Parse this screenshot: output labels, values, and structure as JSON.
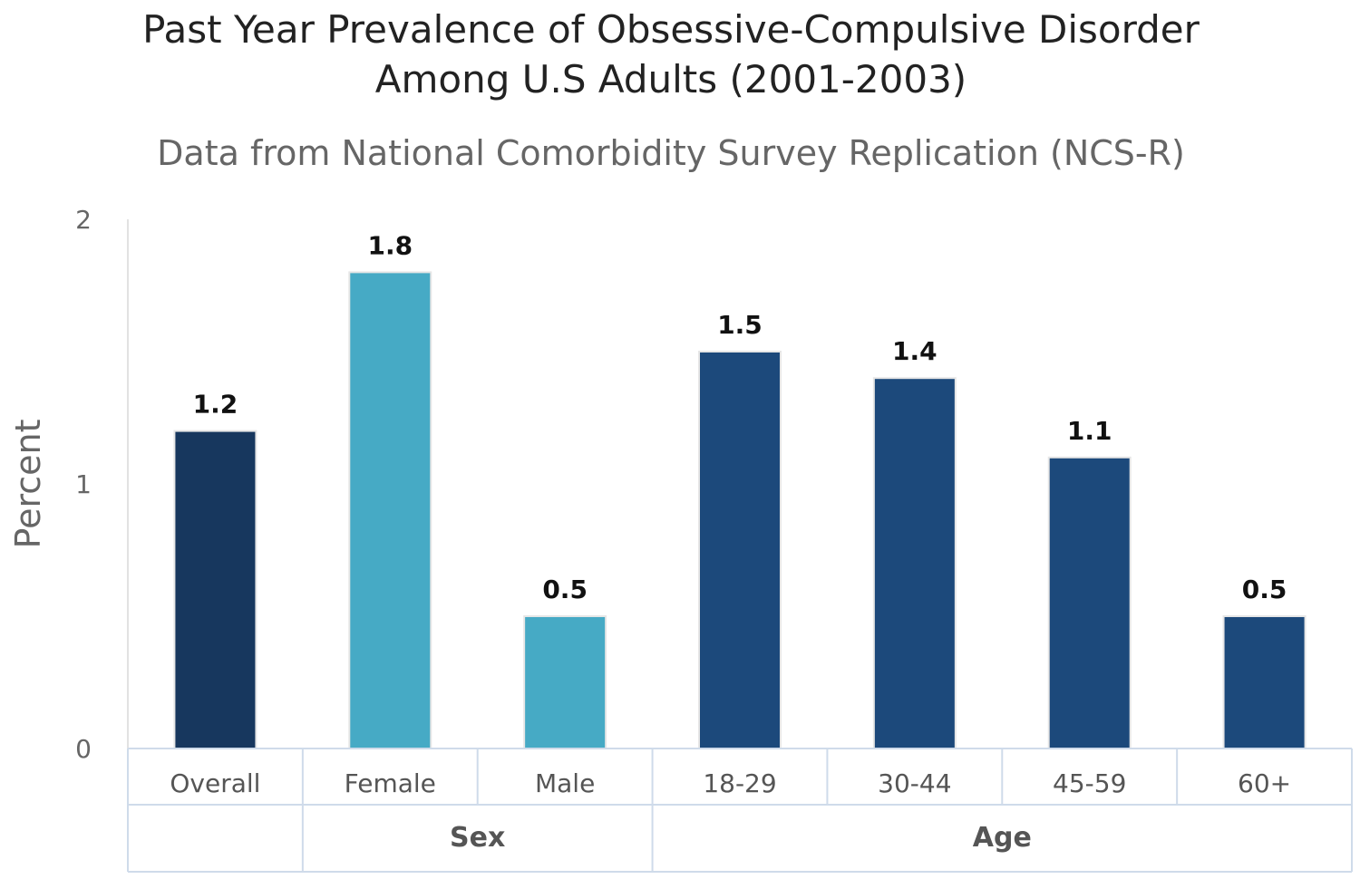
{
  "chart_data": {
    "type": "bar",
    "title_lines": [
      "Past Year Prevalence of Obsessive-Compulsive Disorder",
      "Among U.S Adults (2001-2003)"
    ],
    "subtitle": "Data from National Comorbidity Survey Replication (NCS-R)",
    "ylabel": "Percent",
    "xlabel": "",
    "ylim": [
      0,
      2
    ],
    "yticks": [
      "0",
      "1",
      "2"
    ],
    "grid": false,
    "categories": [
      "Overall",
      "Female",
      "Male",
      "18-29",
      "30-44",
      "45-59",
      "60+"
    ],
    "values": [
      1.2,
      1.8,
      0.5,
      1.5,
      1.4,
      1.1,
      0.5
    ],
    "data_labels": [
      "1.2",
      "1.8",
      "0.5",
      "1.5",
      "1.4",
      "1.1",
      "0.5"
    ],
    "groups": [
      {
        "label": "",
        "categories": [
          "Overall"
        ]
      },
      {
        "label": "Sex",
        "categories": [
          "Female",
          "Male"
        ]
      },
      {
        "label": "Age",
        "categories": [
          "18-29",
          "30-44",
          "45-59",
          "60+"
        ]
      }
    ],
    "bar_colors": [
      "#17375e",
      "#46aac5",
      "#46aac5",
      "#1c497b",
      "#1c497b",
      "#1c497b",
      "#1c497b"
    ]
  }
}
